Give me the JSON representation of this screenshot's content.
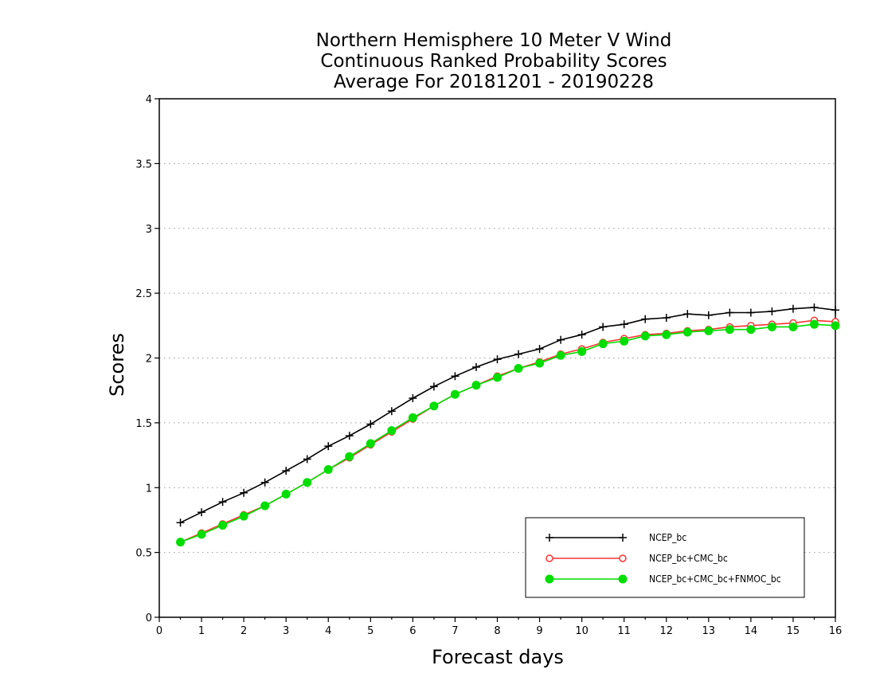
{
  "chart_data": {
    "type": "line",
    "title": [
      "Northern Hemisphere 10 Meter V Wind",
      "Continuous Ranked Probability Scores",
      "Average For 20181201 - 20190228"
    ],
    "xlabel": "Forecast days",
    "ylabel": "Scores",
    "xlim": [
      0,
      16
    ],
    "ylim": [
      0,
      4
    ],
    "xticks": [
      "0",
      "1",
      "2",
      "3",
      "4",
      "5",
      "6",
      "7",
      "8",
      "9",
      "10",
      "11",
      "12",
      "13",
      "14",
      "15",
      "16"
    ],
    "yticks": [
      "0",
      "0.5",
      "1",
      "1.5",
      "2",
      "2.5",
      "3",
      "3.5",
      "4"
    ],
    "grid": "horizontal-dotted",
    "legend_position": "bottom-right",
    "x": [
      0.5,
      1,
      1.5,
      2,
      2.5,
      3,
      3.5,
      4,
      4.5,
      5,
      5.5,
      6,
      6.5,
      7,
      7.5,
      8,
      8.5,
      9,
      9.5,
      10,
      10.5,
      11,
      11.5,
      12,
      12.5,
      13,
      13.5,
      14,
      14.5,
      15,
      15.5,
      16
    ],
    "series": [
      {
        "name": "NCEP_bc",
        "color": "#000000",
        "marker": "plus",
        "values": [
          0.73,
          0.81,
          0.89,
          0.96,
          1.04,
          1.13,
          1.22,
          1.32,
          1.4,
          1.49,
          1.59,
          1.69,
          1.78,
          1.86,
          1.93,
          1.99,
          2.03,
          2.07,
          2.14,
          2.18,
          2.24,
          2.26,
          2.3,
          2.31,
          2.34,
          2.33,
          2.35,
          2.35,
          2.36,
          2.38,
          2.39,
          2.37
        ]
      },
      {
        "name": "NCEP_bc+CMC_bc",
        "color": "#ff3333",
        "marker": "open-circle",
        "values": [
          0.58,
          0.65,
          0.72,
          0.79,
          0.86,
          0.95,
          1.04,
          1.14,
          1.23,
          1.33,
          1.43,
          1.53,
          1.63,
          1.72,
          1.79,
          1.86,
          1.92,
          1.97,
          2.03,
          2.07,
          2.12,
          2.15,
          2.18,
          2.19,
          2.21,
          2.22,
          2.24,
          2.25,
          2.26,
          2.27,
          2.29,
          2.28
        ]
      },
      {
        "name": "NCEP_bc+CMC_bc+FNMOC_bc",
        "color": "#00dd00",
        "marker": "filled-circle",
        "values": [
          0.58,
          0.64,
          0.71,
          0.78,
          0.86,
          0.95,
          1.04,
          1.14,
          1.24,
          1.34,
          1.44,
          1.54,
          1.63,
          1.72,
          1.79,
          1.85,
          1.92,
          1.96,
          2.02,
          2.05,
          2.11,
          2.13,
          2.17,
          2.18,
          2.2,
          2.21,
          2.22,
          2.22,
          2.24,
          2.24,
          2.26,
          2.25
        ]
      }
    ]
  }
}
